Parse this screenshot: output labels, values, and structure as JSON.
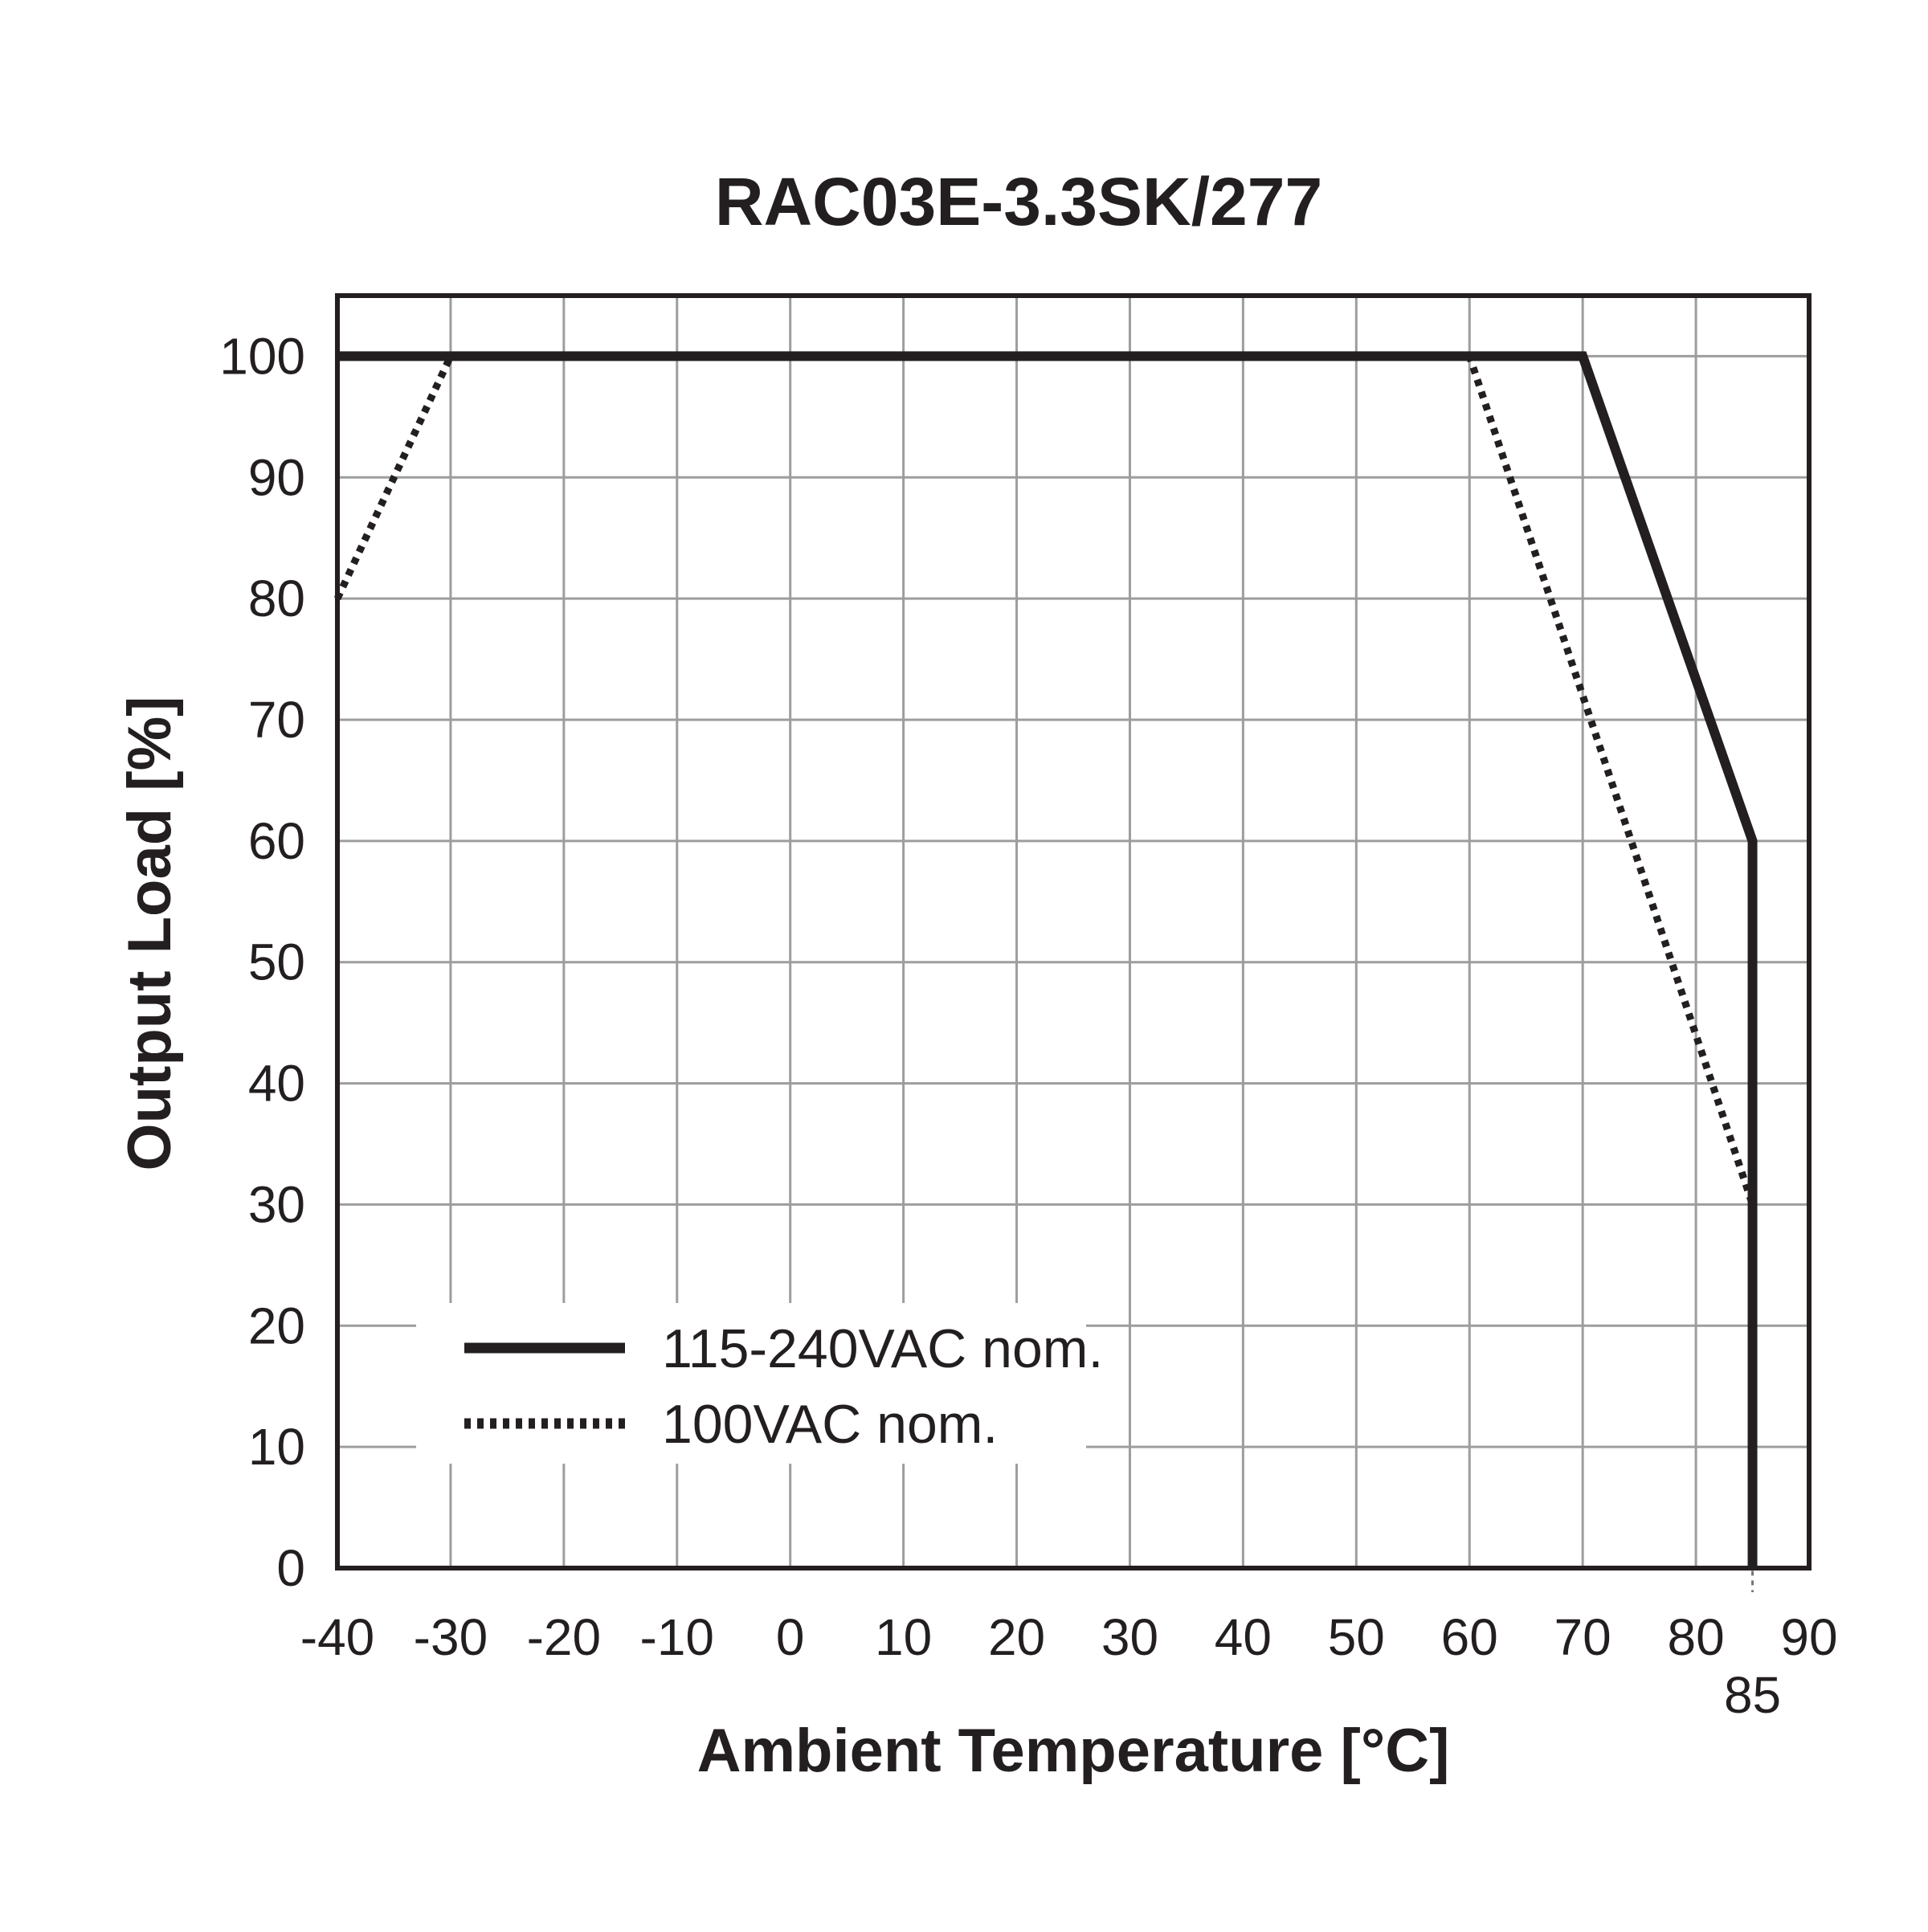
{
  "chart_data": {
    "type": "line",
    "title": "RAC03E-3.3SK/277",
    "xlabel": "Ambient Temperature [°C]",
    "ylabel": "Output Load [%]",
    "xlim": [
      -40,
      90
    ],
    "ylim": [
      0,
      105
    ],
    "x_ticks": [
      -40,
      -30,
      -20,
      -10,
      0,
      10,
      20,
      30,
      40,
      50,
      60,
      70,
      80,
      90
    ],
    "x_tick_labels": [
      "-40",
      "-30",
      "-20",
      "-10",
      "0",
      "10",
      "20",
      "30",
      "40",
      "50",
      "60",
      "70",
      "80",
      "90"
    ],
    "y_ticks": [
      0,
      10,
      20,
      30,
      40,
      50,
      60,
      70,
      80,
      90,
      100
    ],
    "y_tick_labels": [
      "0",
      "10",
      "20",
      "30",
      "40",
      "50",
      "60",
      "70",
      "80",
      "90",
      "100"
    ],
    "extra_x_marker": {
      "value": 85,
      "label": "85"
    },
    "grid": true,
    "legend_position": "bottom-left",
    "colors": {
      "line": "#231f20",
      "grid": "#9d9d9d",
      "frame": "#231f20"
    },
    "series": [
      {
        "name": "115-240VAC nom.",
        "style": "solid",
        "points": [
          [
            -40,
            100
          ],
          [
            70,
            100
          ],
          [
            85,
            60
          ],
          [
            85,
            0
          ]
        ]
      },
      {
        "name": "100VAC nom.",
        "style": "dotted",
        "points": [
          [
            -40,
            80
          ],
          [
            -30,
            100
          ],
          [
            60,
            100
          ],
          [
            85,
            30
          ],
          [
            85,
            0
          ]
        ]
      }
    ]
  }
}
